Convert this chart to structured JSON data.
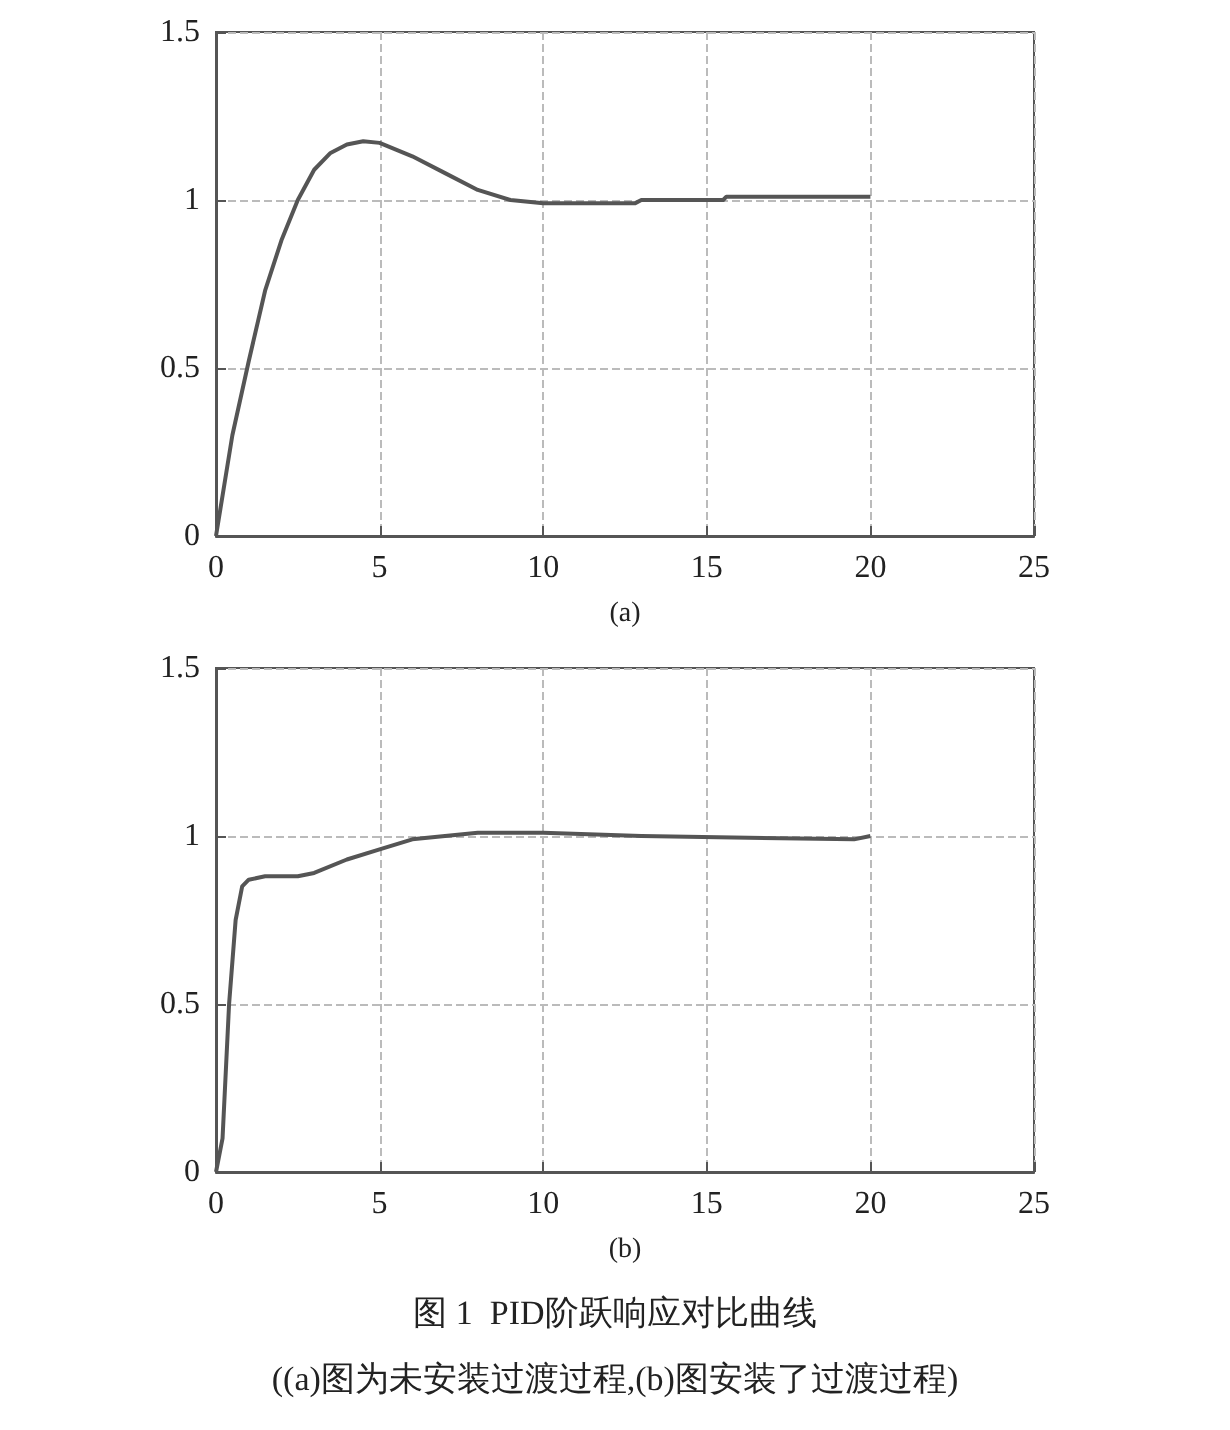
{
  "chart_data": [
    {
      "type": "line",
      "xlabel": "(a)",
      "xlim": [
        0,
        25
      ],
      "xticks": [
        0,
        5,
        10,
        15,
        20,
        25
      ],
      "ylim": [
        0,
        1.5
      ],
      "yticks": [
        0,
        0.5,
        1,
        1.5
      ],
      "grid": true,
      "marker": "none",
      "line_style": "solid",
      "series": [
        {
          "color": "#555555",
          "x": [
            0,
            0.5,
            1,
            1.5,
            2,
            2.5,
            3,
            3.5,
            4,
            4.5,
            5,
            6,
            7,
            8,
            9,
            10,
            12.8,
            13,
            15.5,
            15.6,
            20
          ],
          "values": [
            0,
            0.3,
            0.52,
            0.73,
            0.88,
            1.0,
            1.09,
            1.14,
            1.165,
            1.175,
            1.17,
            1.13,
            1.08,
            1.03,
            1.0,
            0.99,
            0.99,
            1.0,
            1.0,
            1.01,
            1.01
          ]
        }
      ]
    },
    {
      "type": "line",
      "xlabel": "(b)",
      "xlim": [
        0,
        25
      ],
      "xticks": [
        0,
        5,
        10,
        15,
        20,
        25
      ],
      "ylim": [
        0,
        1.5
      ],
      "yticks": [
        0,
        0.5,
        1,
        1.5
      ],
      "grid": true,
      "marker": "none",
      "line_style": "solid",
      "annotations": [
        "图 1  PID阶跃响应对比曲线",
        "((a)图为未安装过渡过程,(b)图安装了过渡过程)"
      ],
      "series": [
        {
          "color": "#555555",
          "x": [
            0,
            0.2,
            0.4,
            0.6,
            0.8,
            1,
            1.5,
            2.5,
            3,
            4,
            5,
            6,
            7,
            8,
            10,
            13,
            19.5,
            20
          ],
          "values": [
            0,
            0.1,
            0.5,
            0.75,
            0.85,
            0.87,
            0.88,
            0.88,
            0.89,
            0.93,
            0.96,
            0.99,
            1.0,
            1.01,
            1.01,
            1.0,
            0.99,
            1.0
          ]
        }
      ]
    }
  ]
}
